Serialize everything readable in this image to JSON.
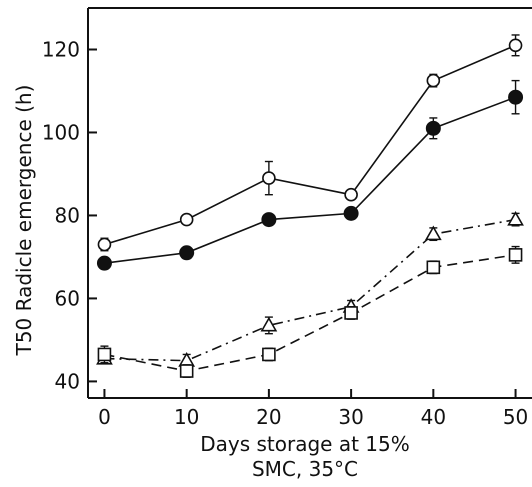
{
  "chart_data": {
    "type": "line",
    "xlabel_line1": "Days storage at 15%",
    "xlabel_line2": "SMC, 35°C",
    "ylabel": "T50 Radicle emergence (h)",
    "xlim": [
      -2,
      52
    ],
    "ylim": [
      36,
      130
    ],
    "x_ticks": [
      0,
      10,
      20,
      30,
      40,
      50
    ],
    "y_ticks": [
      40,
      60,
      80,
      100,
      120
    ],
    "x_tick_labels": [
      "0",
      "10",
      "20",
      "30",
      "40",
      "50"
    ],
    "y_tick_labels": [
      "40",
      "60",
      "80",
      "100",
      "120"
    ],
    "x": [
      0,
      10,
      20,
      30,
      40,
      50
    ],
    "series": [
      {
        "marker": "open-circle",
        "line": "solid",
        "values": [
          73,
          79,
          89,
          85,
          112.5,
          121
        ],
        "errors": [
          1.5,
          1,
          4,
          1,
          1.5,
          2.5
        ]
      },
      {
        "marker": "filled-circle",
        "line": "solid",
        "values": [
          68.5,
          71,
          79,
          80.5,
          101,
          108.5
        ],
        "errors": [
          0,
          0,
          0,
          0,
          2.5,
          4
        ]
      },
      {
        "marker": "open-triangle",
        "line": "dash-dot",
        "values": [
          45.5,
          45,
          53.5,
          58,
          75.5,
          79
        ],
        "errors": [
          1,
          1.5,
          2,
          1.5,
          1.5,
          1.5
        ]
      },
      {
        "marker": "open-square",
        "line": "dashed",
        "values": [
          46.5,
          42.5,
          46.5,
          56.5,
          67.5,
          70.5
        ],
        "errors": [
          2,
          1.5,
          1.5,
          1.5,
          1.5,
          2
        ]
      }
    ],
    "grid": false,
    "legend": "none"
  }
}
